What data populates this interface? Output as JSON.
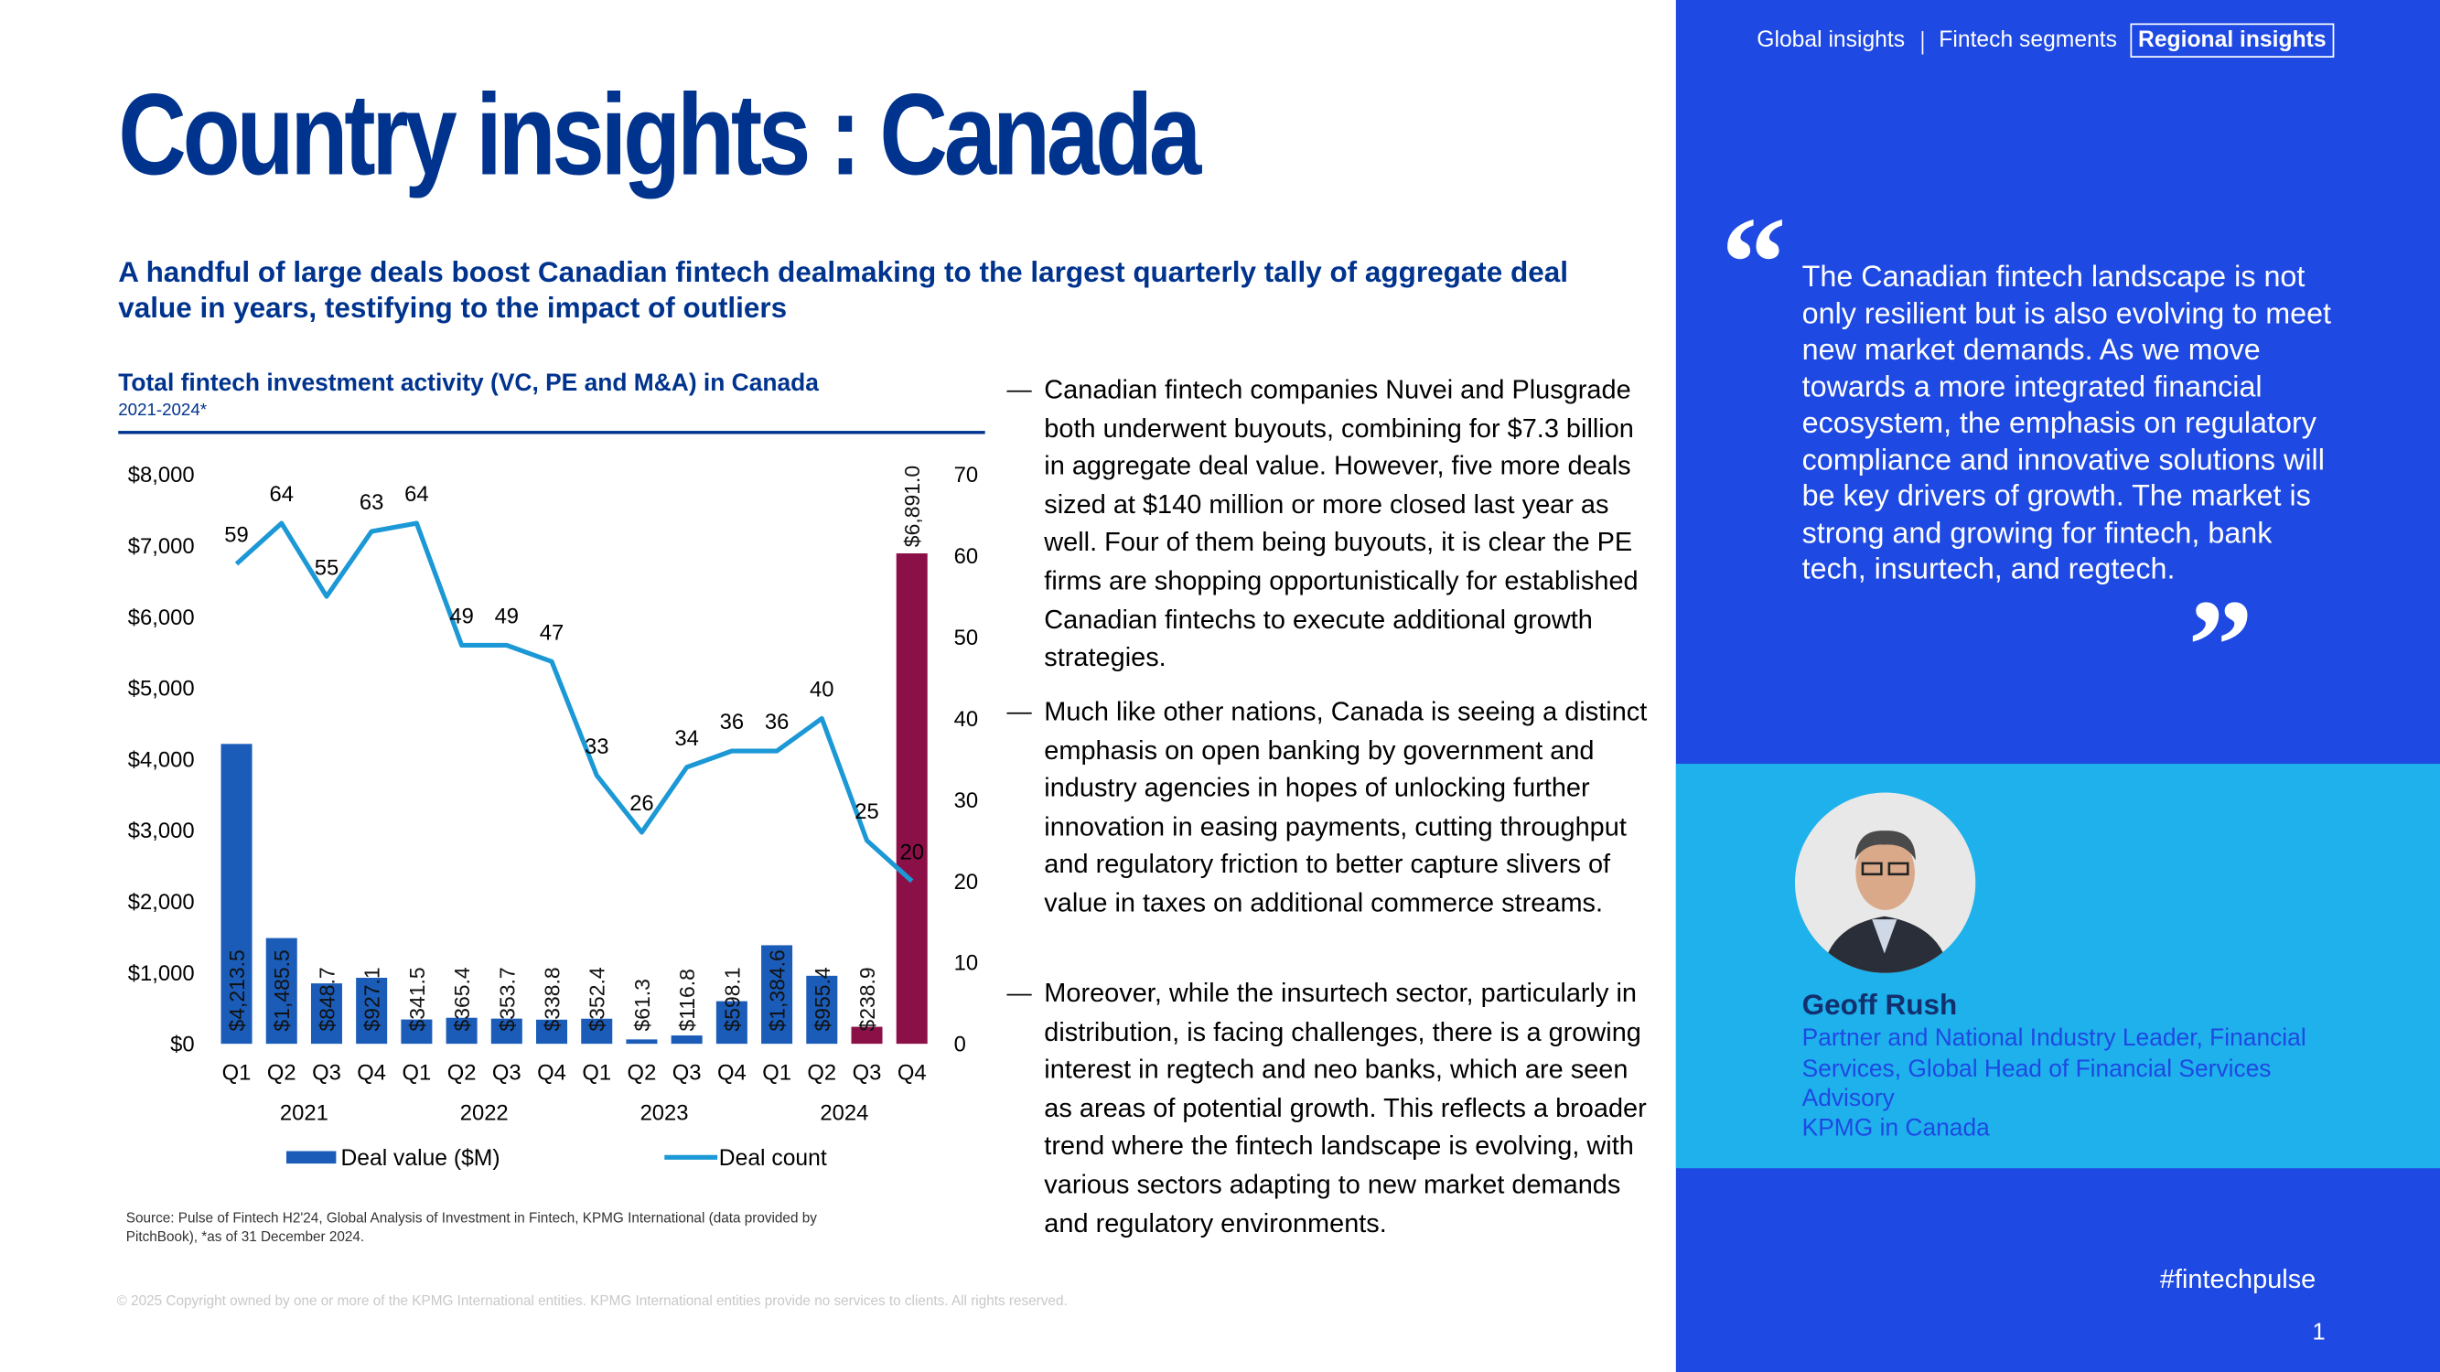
{
  "nav": {
    "items": [
      "Global insights",
      "Fintech segments",
      "Regional insights"
    ]
  },
  "header": {
    "title": "Country insights : Canada",
    "subtitle": "A handful of large deals boost Canadian fintech dealmaking to the largest quarterly tally of aggregate deal value in years, testifying to the impact of outliers"
  },
  "chart_data": {
    "type": "combo",
    "title": "Total fintech investment activity (VC, PE and M&A) in Canada",
    "subtitle": "2021-2024*",
    "categories": [
      "Q1",
      "Q2",
      "Q3",
      "Q4",
      "Q1",
      "Q2",
      "Q3",
      "Q4",
      "Q1",
      "Q2",
      "Q3",
      "Q4",
      "Q1",
      "Q2",
      "Q3",
      "Q4"
    ],
    "years": [
      "2021",
      "2022",
      "2023",
      "2024"
    ],
    "series": [
      {
        "name": "Deal value ($M)",
        "type": "bar",
        "color": "#1a5cb8",
        "colors": [
          "#1a5cb8",
          "#1a5cb8",
          "#1a5cb8",
          "#1a5cb8",
          "#1a5cb8",
          "#1a5cb8",
          "#1a5cb8",
          "#1a5cb8",
          "#1a5cb8",
          "#1a5cb8",
          "#1a5cb8",
          "#1a5cb8",
          "#1a5cb8",
          "#1a5cb8",
          "#8c1048",
          "#8c1048"
        ],
        "values": [
          4213.5,
          1485.5,
          848.7,
          927.1,
          341.5,
          365.4,
          353.7,
          338.8,
          352.4,
          61.3,
          116.8,
          598.1,
          1384.6,
          955.4,
          238.9,
          6891.0
        ],
        "value_labels": [
          "$4,213.5",
          "$1,485.5",
          "$848.7",
          "$927.1",
          "$341.5",
          "$365.4",
          "$353.7",
          "$338.8",
          "$352.4",
          "$61.3",
          "$116.8",
          "$598.1",
          "$1,384.6",
          "$955.4",
          "$238.9",
          "$6,891.0"
        ]
      },
      {
        "name": "Deal count",
        "type": "line",
        "axis": "y2",
        "color": "#1b98d5",
        "values": [
          59,
          64,
          55,
          63,
          64,
          49,
          49,
          47,
          33,
          26,
          34,
          36,
          36,
          40,
          25,
          20
        ]
      }
    ],
    "ylim": [
      0,
      8000
    ],
    "yticks": [
      {
        "value": 0,
        "label": "$0"
      },
      {
        "value": 1000,
        "label": "$1,000"
      },
      {
        "value": 2000,
        "label": "$2,000"
      },
      {
        "value": 3000,
        "label": "$3,000"
      },
      {
        "value": 4000,
        "label": "$4,000"
      },
      {
        "value": 5000,
        "label": "$5,000"
      },
      {
        "value": 6000,
        "label": "$6,000"
      },
      {
        "value": 7000,
        "label": "$7,000"
      },
      {
        "value": 8000,
        "label": "$8,000"
      }
    ],
    "y2lim": [
      0,
      70
    ],
    "y2ticks": [
      0,
      10,
      20,
      30,
      40,
      50,
      60,
      70
    ],
    "legend": "bottom"
  },
  "source": "Source: Pulse of Fintech H2'24, Global Analysis of Investment in Fintech, KPMG International (data provided by PitchBook), *as of 31 December 2024.",
  "bullets": [
    "Canadian fintech companies Nuvei and Plusgrade both underwent buyouts, combining for $7.3 billion in aggregate deal value. However, five more deals sized at $140 million or more closed last year as well. Four of them being buyouts, it is clear the PE firms are shopping opportunistically for established Canadian fintechs to execute additional growth strategies.",
    "Much like other nations, Canada is seeing a distinct emphasis on open banking by government and industry agencies in hopes of unlocking further innovation in easing payments, cutting throughput and regulatory friction to better capture slivers of value in taxes on additional commerce streams.",
    "Moreover, while the insurtech sector, particularly in distribution, is facing challenges, there is a growing interest in regtech and neo banks, which are seen as areas of potential growth. This reflects a broader trend where the fintech landscape is evolving, with various sectors adapting to new market demands and regulatory environments."
  ],
  "quote": {
    "open": "“",
    "close": "”",
    "text": "The Canadian fintech landscape is not only resilient but is also evolving to meet new market demands. As we move towards a more integrated financial ecosystem, the emphasis on regulatory compliance and innovative solutions will be key drivers of growth. The market is strong and growing for fintech, bank tech, insurtech, and regtech."
  },
  "person": {
    "name": "Geoff Rush",
    "role": "Partner and National Industry Leader, Financial Services, Global Head of Financial Services Advisory",
    "company": "KPMG in Canada"
  },
  "hashtag": "#fintechpulse",
  "page_number": "1",
  "copyright": "© 2025 Copyright owned by one or more of the KPMG International entities. KPMG International entities provide no services to clients. All rights reserved."
}
